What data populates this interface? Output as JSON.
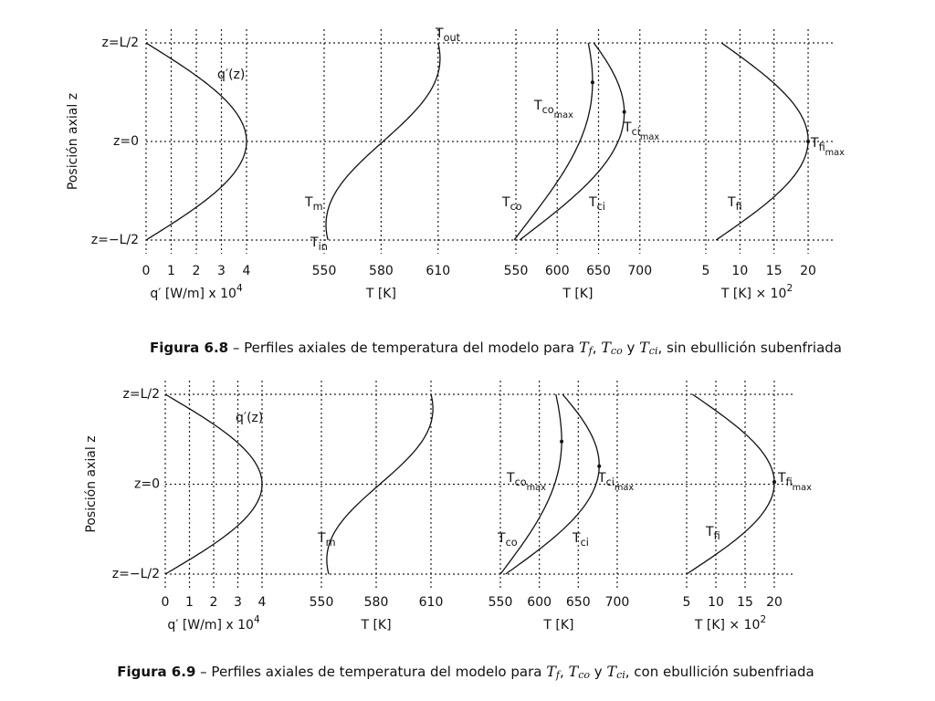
{
  "figures": [
    {
      "ylabel": "Posición axial z",
      "zlabels": [
        "z=L/2",
        "z=0",
        "z=−L/2"
      ],
      "panels": [
        {
          "xticks": [
            0,
            1,
            2,
            3,
            4
          ],
          "xlabel": {
            "text": "q′ [W/m] x 10",
            "sup": "4"
          },
          "annotations": [
            {
              "text": "q′(z)"
            }
          ]
        },
        {
          "xticks": [
            550,
            580,
            610
          ],
          "xlabel": {
            "text": "T [K]"
          },
          "annotations": [
            {
              "text": "T",
              "sub": "out"
            },
            {
              "text": "T",
              "sub": "m"
            },
            {
              "text": "T",
              "sub": "in"
            }
          ]
        },
        {
          "xticks": [
            550,
            600,
            650,
            700
          ],
          "xlabel": {
            "text": "T [K]"
          },
          "annotations": [
            {
              "text": "T",
              "sub": "co",
              "sub2": "max"
            },
            {
              "text": "T",
              "sub": "ci",
              "sub2": "max"
            },
            {
              "text": "T",
              "sub": "co"
            },
            {
              "text": "T",
              "sub": "ci"
            }
          ]
        },
        {
          "xticks": [
            5,
            10,
            15,
            20
          ],
          "xlabel": {
            "text": "T [K] × 10",
            "sup": "2"
          },
          "annotations": [
            {
              "text": "T",
              "sub": "fi",
              "sub2": "max"
            },
            {
              "text": "T",
              "sub": "fi"
            }
          ]
        }
      ],
      "caption": {
        "label": "Figura 6.8",
        "parts": [
          {
            "text": " – Perfiles axiales de temperatura del modelo para "
          },
          {
            "text": "T",
            "sub": "f",
            "math": true
          },
          {
            "text": ", "
          },
          {
            "text": "T",
            "sub": "co",
            "math": true
          },
          {
            "text": " y "
          },
          {
            "text": "T",
            "sub": "ci",
            "math": true
          },
          {
            "text": ", sin ebullición subenfriada"
          }
        ]
      }
    },
    {
      "ylabel": "Posición axial z",
      "zlabels": [
        "z=L/2",
        "z=0",
        "z=−L/2"
      ],
      "panels": [
        {
          "xticks": [
            0,
            1,
            2,
            3,
            4
          ],
          "xlabel": {
            "text": "q′ [W/m] x 10",
            "sup": "4"
          },
          "annotations": [
            {
              "text": "q′(z)"
            }
          ]
        },
        {
          "xticks": [
            550,
            580,
            610
          ],
          "xlabel": {
            "text": "T [K]"
          },
          "annotations": [
            {
              "text": "T",
              "sub": "m"
            }
          ]
        },
        {
          "xticks": [
            550,
            600,
            650,
            700
          ],
          "xlabel": {
            "text": "T [K]"
          },
          "annotations": [
            {
              "text": "T",
              "sub": "co",
              "sub2": "max"
            },
            {
              "text": "T",
              "sub": "ci",
              "sub2": "max"
            },
            {
              "text": "T",
              "sub": "co"
            },
            {
              "text": "T",
              "sub": "ci"
            }
          ]
        },
        {
          "xticks": [
            5,
            10,
            15,
            20
          ],
          "xlabel": {
            "text": "T [K] × 10",
            "sup": "2"
          },
          "annotations": [
            {
              "text": "T",
              "sub": "fi",
              "sub2": "max"
            },
            {
              "text": "T",
              "sub": "fi"
            }
          ]
        }
      ],
      "caption": {
        "label": "Figura 6.9",
        "parts": [
          {
            "text": " – Perfiles axiales de temperatura del modelo para "
          },
          {
            "text": "T",
            "sub": "f",
            "math": true
          },
          {
            "text": ", "
          },
          {
            "text": "T",
            "sub": "co",
            "math": true
          },
          {
            "text": " y "
          },
          {
            "text": "T",
            "sub": "ci",
            "math": true
          },
          {
            "text": ", con ebullición subenfriada"
          }
        ]
      }
    }
  ]
}
